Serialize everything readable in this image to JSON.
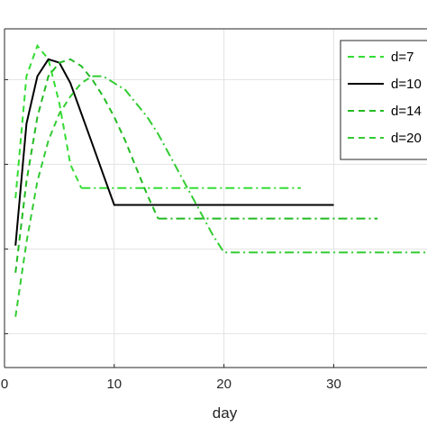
{
  "chart_data": {
    "type": "line",
    "xlabel": "day",
    "ylabel": "",
    "title": "",
    "xlim": [
      0,
      38.5
    ],
    "xticks": [
      0,
      10,
      20,
      30
    ],
    "xtick_labels": [
      "0",
      "10",
      "20",
      "30"
    ],
    "ylim": [
      0,
      1
    ],
    "yticks": [
      0.1,
      0.35,
      0.6,
      0.85
    ],
    "grid": true,
    "legend_position": "top-right",
    "series": [
      {
        "name": "d=7",
        "color": "#33dd33",
        "style": "dashed-then-dashdot",
        "x": [
          1,
          2,
          3,
          4,
          5,
          6,
          7,
          13,
          20,
          27
        ],
        "y": [
          0.5,
          0.86,
          0.95,
          0.91,
          0.78,
          0.6,
          0.53,
          0.53,
          0.53,
          0.53
        ]
      },
      {
        "name": "d=10",
        "color": "#000000",
        "style": "solid",
        "x": [
          1,
          2,
          3,
          4,
          5,
          6,
          7,
          8,
          9,
          10,
          20,
          30
        ],
        "y": [
          0.36,
          0.72,
          0.86,
          0.91,
          0.9,
          0.84,
          0.75,
          0.66,
          0.57,
          0.48,
          0.48,
          0.48
        ]
      },
      {
        "name": "d=14",
        "color": "#22bb22",
        "style": "dashed-then-dashdot",
        "x": [
          1,
          2,
          3,
          4,
          5,
          6,
          7,
          8,
          9,
          10,
          11,
          12,
          13,
          14,
          20,
          27,
          34
        ],
        "y": [
          0.28,
          0.55,
          0.74,
          0.86,
          0.9,
          0.91,
          0.89,
          0.85,
          0.8,
          0.74,
          0.67,
          0.59,
          0.51,
          0.44,
          0.44,
          0.44,
          0.44
        ]
      },
      {
        "name": "d=20",
        "color": "#33cc33",
        "style": "dashed-then-dashdot",
        "x": [
          1,
          2,
          3,
          4,
          5,
          6,
          7,
          8,
          9,
          10,
          11,
          12,
          13,
          14,
          15,
          16,
          17,
          18,
          19,
          20,
          25,
          30,
          38.5
        ],
        "y": [
          0.15,
          0.37,
          0.55,
          0.67,
          0.75,
          0.8,
          0.84,
          0.86,
          0.86,
          0.84,
          0.82,
          0.78,
          0.74,
          0.69,
          0.63,
          0.57,
          0.51,
          0.45,
          0.39,
          0.34,
          0.34,
          0.34,
          0.34
        ]
      }
    ]
  }
}
